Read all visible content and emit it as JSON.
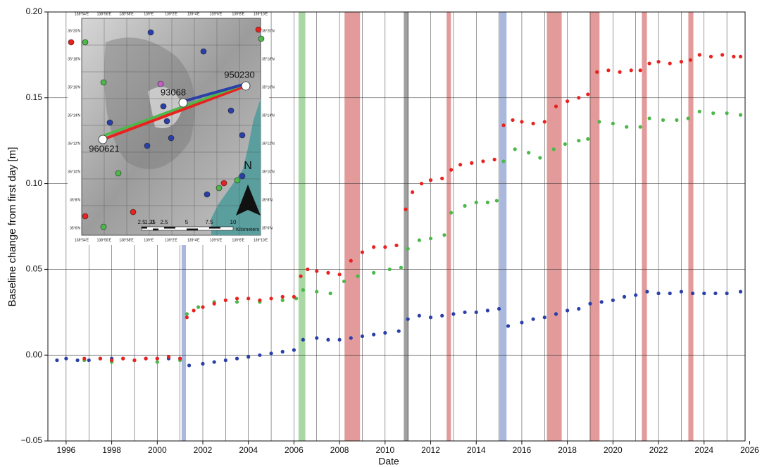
{
  "chart_data": {
    "type": "scatter",
    "y_label": "Baseline change from first day [m]",
    "x_label": "Date",
    "xlim": [
      1995.2,
      2025.8
    ],
    "ylim": [
      -0.05,
      0.2
    ],
    "xticks": [
      1996,
      1998,
      2000,
      2002,
      2004,
      2006,
      2008,
      2010,
      2012,
      2014,
      2016,
      2018,
      2020,
      2022,
      2024,
      2026
    ],
    "xgrid_minor": [
      1997,
      1999,
      2001,
      2003,
      2005,
      2007,
      2009,
      2011,
      2013,
      2015,
      2017,
      2019,
      2021,
      2023,
      2025
    ],
    "yticks": [
      {
        "value": -0.05,
        "label": "−0.05"
      },
      {
        "value": 0,
        "label": "0.00"
      },
      {
        "value": 0.05,
        "label": "0.05"
      },
      {
        "value": 0.1,
        "label": "0.10"
      },
      {
        "value": 0.15,
        "label": "0.15"
      },
      {
        "value": 0.2,
        "label": "0.20"
      }
    ],
    "grid": true,
    "bands": [
      {
        "x": [
          2001.07,
          2001.26
        ],
        "color": "#aab8de"
      },
      {
        "x": [
          2006.2,
          2006.5
        ],
        "color": "#a9d8a4"
      },
      {
        "x": [
          2008.22,
          2008.9
        ],
        "color": "#e29a9a"
      },
      {
        "x": [
          2010.82,
          2011.03
        ],
        "color": "#a0a0a0"
      },
      {
        "x": [
          2012.7,
          2012.89
        ],
        "color": "#e29a9a"
      },
      {
        "x": [
          2015.02,
          2015.33
        ],
        "color": "#aab8de"
      },
      {
        "x": [
          2017.1,
          2017.75
        ],
        "color": "#e29a9a"
      },
      {
        "x": [
          2018.98,
          2019.41
        ],
        "color": "#e29a9a"
      },
      {
        "x": [
          2021.27,
          2021.49
        ],
        "color": "#e29a9a"
      },
      {
        "x": [
          2023.31,
          2023.53
        ],
        "color": "#e29a9a"
      }
    ],
    "series": [
      {
        "color": "#2a3fa8",
        "x": [
          1995.6,
          1996,
          1996.5,
          1997,
          1997.5,
          1998,
          1998.5,
          1999,
          1999.5,
          2000,
          2000.5,
          2001.0,
          2001.4,
          2002,
          2002.5,
          2003,
          2003.5,
          2004,
          2004.5,
          2005,
          2005.5,
          2006,
          2006.4,
          2007,
          2007.5,
          2008,
          2008.5,
          2009,
          2009.5,
          2010,
          2010.6,
          2011,
          2011.5,
          2012,
          2012.5,
          2013,
          2013.5,
          2014,
          2014.5,
          2015,
          2015.4,
          2016,
          2016.5,
          2017,
          2017.5,
          2018,
          2018.5,
          2019,
          2019.5,
          2020,
          2020.5,
          2021,
          2021.5,
          2022,
          2022.5,
          2023,
          2023.5,
          2024,
          2024.5,
          2025,
          2025.6
        ],
        "values": [
          -0.003,
          -0.002,
          -0.003,
          -0.003,
          -0.002,
          -0.002,
          -0.002,
          -0.003,
          -0.002,
          -0.002,
          -0.002,
          -0.002,
          -0.006,
          -0.005,
          -0.004,
          -0.003,
          -0.002,
          -0.001,
          0.0,
          0.001,
          0.002,
          0.003,
          0.009,
          0.01,
          0.009,
          0.009,
          0.01,
          0.011,
          0.012,
          0.013,
          0.014,
          0.021,
          0.023,
          0.022,
          0.023,
          0.024,
          0.025,
          0.025,
          0.026,
          0.027,
          0.017,
          0.019,
          0.021,
          0.022,
          0.024,
          0.026,
          0.027,
          0.03,
          0.031,
          0.032,
          0.034,
          0.035,
          0.037,
          0.036,
          0.036,
          0.037,
          0.036,
          0.036,
          0.036,
          0.036,
          0.037
        ]
      },
      {
        "color": "#4cb84a",
        "x": [
          1996.8,
          1998,
          1999,
          2000,
          2001.0,
          2001.3,
          2001.8,
          2002.5,
          2003.5,
          2004.5,
          2005.5,
          2006.1,
          2006.4,
          2007,
          2007.6,
          2008.2,
          2008.8,
          2009.5,
          2010.2,
          2010.7,
          2011,
          2011.5,
          2012,
          2012.6,
          2012.9,
          2013.5,
          2014,
          2014.5,
          2014.9,
          2015.2,
          2015.7,
          2016.3,
          2016.8,
          2017.4,
          2017.9,
          2018.5,
          2018.9,
          2019.4,
          2020,
          2020.6,
          2021.2,
          2021.6,
          2022.2,
          2022.8,
          2023.3,
          2023.8,
          2024.4,
          2025,
          2025.6
        ],
        "values": [
          -0.003,
          -0.004,
          -0.003,
          -0.004,
          -0.003,
          0.024,
          0.028,
          0.031,
          0.031,
          0.031,
          0.032,
          0.033,
          0.038,
          0.037,
          0.036,
          0.043,
          0.046,
          0.048,
          0.05,
          0.051,
          0.062,
          0.067,
          0.068,
          0.07,
          0.083,
          0.087,
          0.089,
          0.089,
          0.09,
          0.113,
          0.12,
          0.118,
          0.115,
          0.12,
          0.123,
          0.125,
          0.126,
          0.136,
          0.135,
          0.133,
          0.133,
          0.138,
          0.137,
          0.137,
          0.138,
          0.142,
          0.141,
          0.141,
          0.14
        ]
      },
      {
        "color": "#e8221f",
        "x": [
          1996.8,
          1997.5,
          1998,
          1998.5,
          1999,
          1999.5,
          2000,
          2000.5,
          2001.0,
          2001.3,
          2001.6,
          2002,
          2002.5,
          2003,
          2003.5,
          2004,
          2004.5,
          2005,
          2005.5,
          2006,
          2006.3,
          2006.6,
          2007,
          2007.5,
          2008,
          2008.5,
          2009,
          2009.5,
          2010,
          2010.5,
          2010.9,
          2011.2,
          2011.6,
          2012,
          2012.5,
          2012.9,
          2013.3,
          2013.8,
          2014.3,
          2014.8,
          2015.2,
          2015.6,
          2016,
          2016.5,
          2017,
          2017.5,
          2018,
          2018.5,
          2018.9,
          2019.3,
          2019.8,
          2020.3,
          2020.8,
          2021.2,
          2021.6,
          2022,
          2022.5,
          2023,
          2023.4,
          2023.8,
          2024.3,
          2024.8,
          2025.3,
          2025.6
        ],
        "values": [
          -0.002,
          -0.002,
          -0.003,
          -0.002,
          -0.003,
          -0.002,
          -0.002,
          -0.001,
          -0.002,
          0.022,
          0.026,
          0.028,
          0.03,
          0.032,
          0.033,
          0.033,
          0.032,
          0.033,
          0.034,
          0.034,
          0.046,
          0.05,
          0.049,
          0.048,
          0.047,
          0.055,
          0.06,
          0.063,
          0.063,
          0.064,
          0.085,
          0.095,
          0.1,
          0.102,
          0.103,
          0.108,
          0.111,
          0.112,
          0.113,
          0.114,
          0.134,
          0.137,
          0.136,
          0.135,
          0.136,
          0.145,
          0.148,
          0.15,
          0.152,
          0.165,
          0.166,
          0.165,
          0.166,
          0.166,
          0.17,
          0.171,
          0.17,
          0.171,
          0.172,
          0.175,
          0.174,
          0.175,
          0.174,
          0.174
        ]
      }
    ]
  },
  "map": {
    "stations": [
      "950230",
      "93068",
      "960621"
    ],
    "lon_labels": [
      "138°54'E",
      "138°56'E",
      "138°58'E",
      "139°E",
      "139°2'E",
      "139°4'E",
      "139°6'E",
      "139°8'E",
      "139°10'E"
    ],
    "lat_labels": [
      "35°20'N",
      "35°18'N",
      "35°16'N",
      "35°14'N",
      "35°12'N",
      "35°10'N",
      "35°8'N",
      "35°6'N"
    ],
    "scale_labels": [
      "2.5",
      "1.25",
      "0",
      "2.5",
      "5",
      "7.5",
      "10"
    ],
    "scale_unit": "Kilometers",
    "north": "N"
  }
}
